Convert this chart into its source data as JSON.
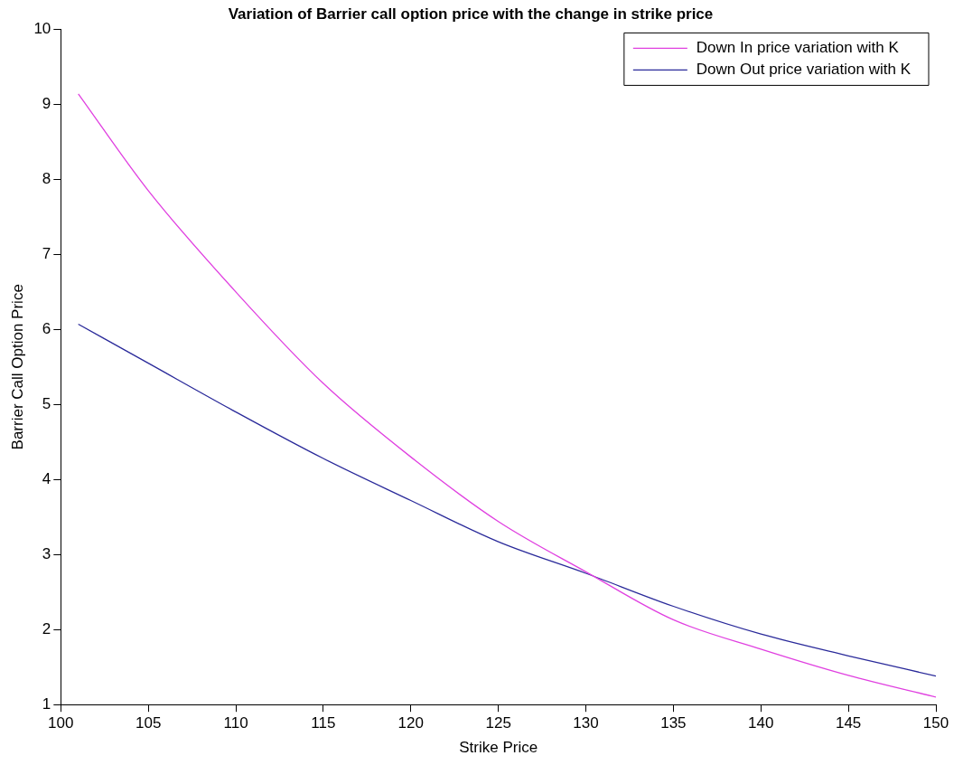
{
  "chart_data": {
    "type": "line",
    "title": "Variation of Barrier call option price with the change in strike price",
    "xlabel": "Strike Price",
    "ylabel": "Barrier Call Option Price",
    "x": [
      101,
      105,
      110,
      115,
      120,
      125,
      130,
      135,
      140,
      145,
      150
    ],
    "series": [
      {
        "name": "Down In price variation with K",
        "color": "#e040e0",
        "values": [
          9.14,
          7.85,
          6.5,
          5.28,
          4.3,
          3.44,
          2.77,
          2.13,
          1.74,
          1.39,
          1.1
        ]
      },
      {
        "name": "Down Out price variation with K",
        "color": "#2a2a9a",
        "values": [
          6.07,
          5.55,
          4.9,
          4.28,
          3.72,
          3.17,
          2.75,
          2.31,
          1.94,
          1.65,
          1.38
        ]
      }
    ],
    "xlim": [
      100,
      150
    ],
    "xticks": [
      100,
      105,
      110,
      115,
      120,
      125,
      130,
      135,
      140,
      145,
      150
    ],
    "ylim": [
      1,
      10
    ],
    "yticks": [
      1,
      2,
      3,
      4,
      5,
      6,
      7,
      8,
      9,
      10
    ],
    "grid": false,
    "legend": "top right",
    "marker": "none",
    "line_style": "solid"
  }
}
